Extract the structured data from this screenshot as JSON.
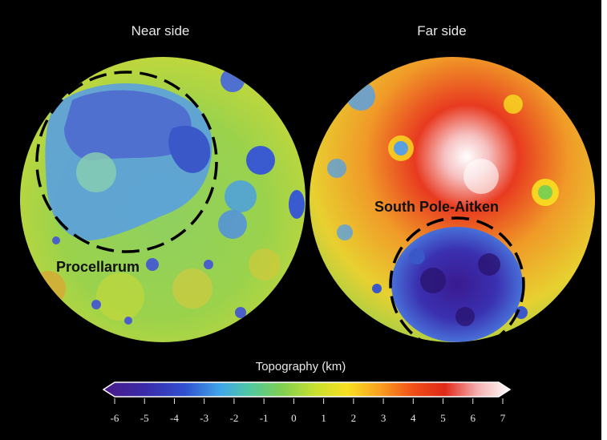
{
  "hemispheres": {
    "near": {
      "title": "Near side",
      "region_label": "Procellarum"
    },
    "far": {
      "title": "Far side",
      "region_label": "South Pole-Aitken"
    }
  },
  "colorbar": {
    "title": "Topography (km)",
    "min": -6,
    "max": 7,
    "ticks": [
      "-6",
      "-5",
      "-4",
      "-3",
      "-2",
      "-1",
      "0",
      "1",
      "2",
      "3",
      "4",
      "5",
      "6",
      "7"
    ],
    "colors": [
      "#4a1a88",
      "#3a2aa8",
      "#3050d0",
      "#40a8e8",
      "#50c8a0",
      "#80d050",
      "#c8e030",
      "#f8e020",
      "#f8a020",
      "#f05018",
      "#e02818",
      "#f4b0b0",
      "#ffffff"
    ]
  }
}
